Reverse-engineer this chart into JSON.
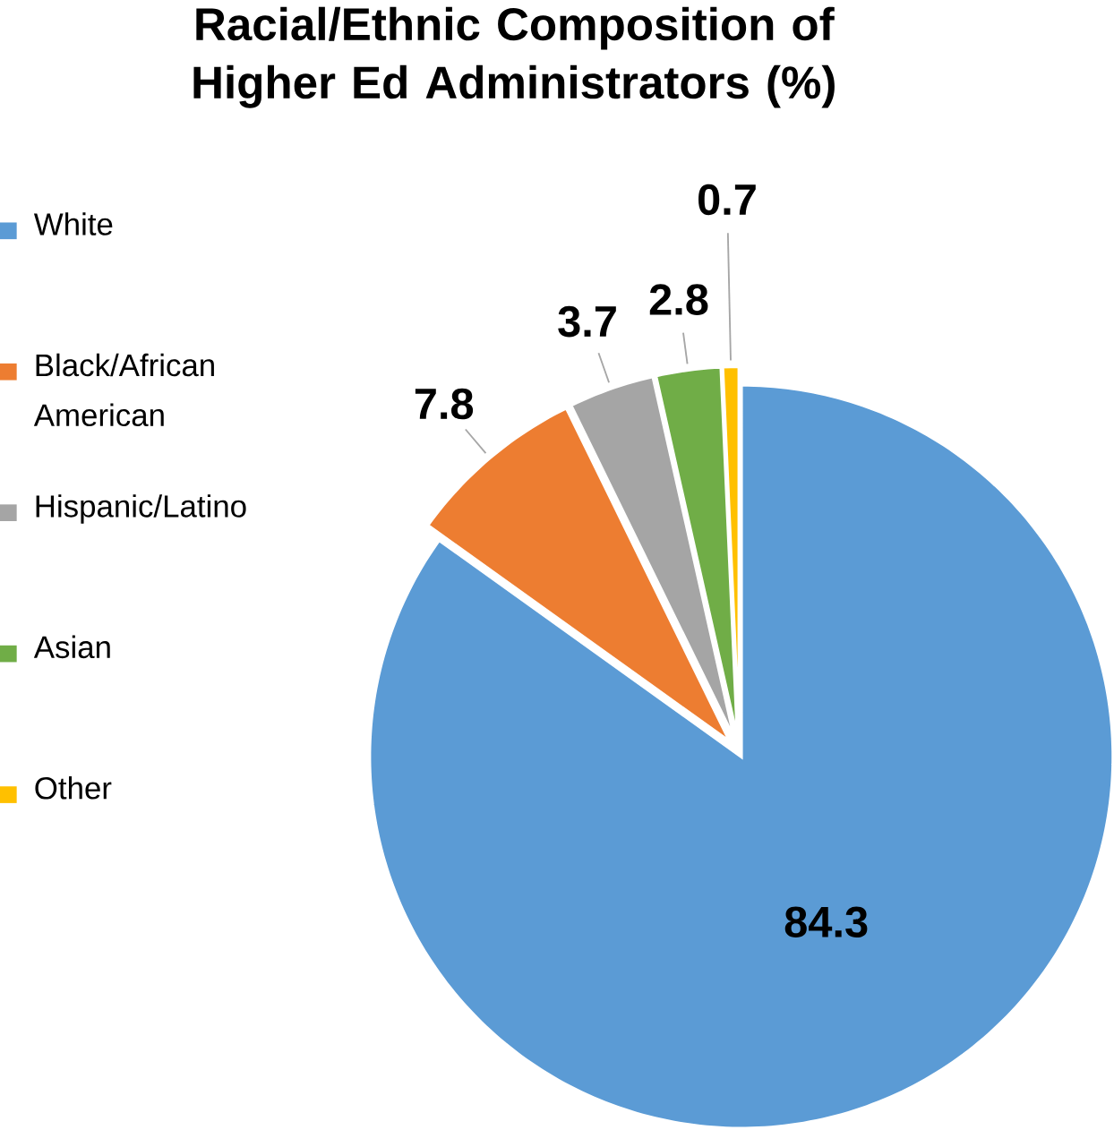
{
  "chart_data": {
    "type": "pie",
    "title": "Racial/Ethnic Composition of Higher Ed Administrators (%)",
    "categories": [
      "White",
      "Black/African American",
      "Hispanic/Latino",
      "Asian",
      "Other"
    ],
    "values": [
      84.3,
      7.8,
      3.7,
      2.8,
      0.7
    ],
    "colors": [
      "#5b9bd5",
      "#ed7d31",
      "#a5a5a5",
      "#70ad47",
      "#ffc000"
    ],
    "data_labels": true,
    "legend": "left"
  }
}
